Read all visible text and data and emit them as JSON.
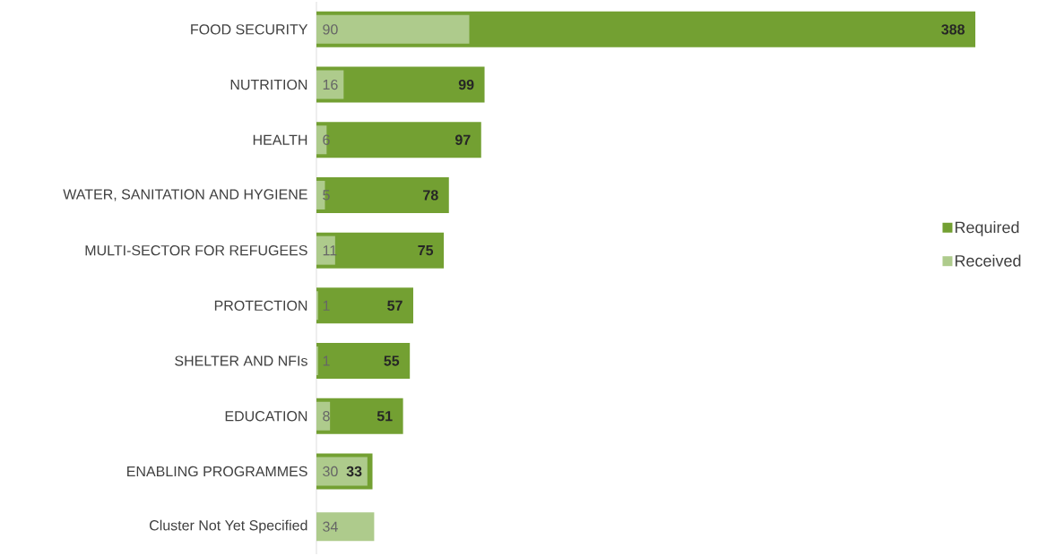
{
  "chart_data": {
    "type": "bar",
    "orientation": "horizontal",
    "categories": [
      "FOOD SECURITY",
      "NUTRITION",
      "HEALTH",
      "WATER, SANITATION AND HYGIENE",
      "MULTI-SECTOR FOR REFUGEES",
      "PROTECTION",
      "SHELTER AND NFIs",
      "EDUCATION",
      "ENABLING PROGRAMMES",
      "Cluster Not Yet Specified"
    ],
    "series": [
      {
        "name": "Required",
        "color": "#73a032",
        "values": [
          388,
          99,
          97,
          78,
          75,
          57,
          55,
          51,
          33,
          null
        ]
      },
      {
        "name": "Received",
        "color": "#aecb8c",
        "values": [
          90,
          16,
          6,
          5,
          11,
          1,
          1,
          8,
          30,
          34
        ]
      }
    ],
    "data_labels": true,
    "legend": "right"
  }
}
